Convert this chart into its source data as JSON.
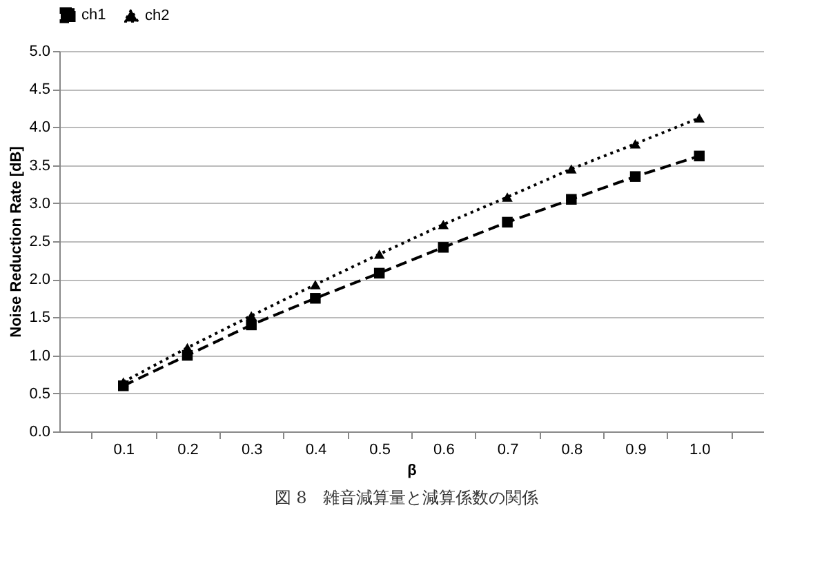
{
  "chart_data": {
    "type": "line",
    "xlabel": "β",
    "ylabel": "Noise Reduction Rate [dB]",
    "categories": [
      "0.1",
      "0.2",
      "0.3",
      "0.4",
      "0.5",
      "0.6",
      "0.7",
      "0.8",
      "0.9",
      "1.0"
    ],
    "series": [
      {
        "name": "ch1",
        "color": "#000000",
        "marker": "square",
        "line_style": "dashed",
        "values": [
          0.6,
          1.0,
          1.4,
          1.75,
          2.08,
          2.42,
          2.75,
          3.05,
          3.35,
          3.62
        ]
      },
      {
        "name": "ch2",
        "color": "#000000",
        "marker": "triangle",
        "line_style": "dotted",
        "values": [
          0.65,
          1.1,
          1.52,
          1.93,
          2.33,
          2.72,
          3.08,
          3.45,
          3.78,
          4.12
        ]
      }
    ],
    "ylim": [
      0,
      5
    ],
    "yticks": [
      {
        "value": 0,
        "label": "0.0"
      },
      {
        "value": 0.5,
        "label": "0.5"
      },
      {
        "value": 1,
        "label": "1.0"
      },
      {
        "value": 1.5,
        "label": "1.5"
      },
      {
        "value": 2,
        "label": "2.0"
      },
      {
        "value": 2.5,
        "label": "2.5"
      },
      {
        "value": 3,
        "label": "3.0"
      },
      {
        "value": 3.5,
        "label": "3.5"
      },
      {
        "value": 4,
        "label": "4.0"
      },
      {
        "value": 4.5,
        "label": "4.5"
      },
      {
        "value": 5,
        "label": "5.0"
      }
    ],
    "grid": "y",
    "legend": "top",
    "annotations": [
      "図 8　雑音減算量と減算係数の関係"
    ]
  }
}
